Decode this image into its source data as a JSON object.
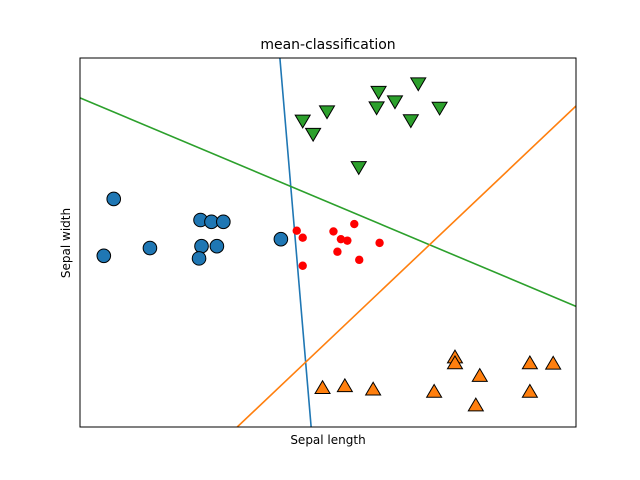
{
  "chart_data": {
    "type": "scatter",
    "title": "mean-classification",
    "xlabel": "Sepal length",
    "ylabel": "Sepal width",
    "xlim": [
      0,
      10
    ],
    "ylim": [
      0,
      10
    ],
    "ticks_visible": false,
    "grid": false,
    "legend": "none",
    "series": [
      {
        "marker": "circle",
        "color": "#1f77b4",
        "points": [
          [
            0.68,
            6.18
          ],
          [
            0.48,
            4.64
          ],
          [
            1.41,
            4.85
          ],
          [
            2.43,
            5.61
          ],
          [
            2.65,
            5.56
          ],
          [
            2.89,
            5.56
          ],
          [
            2.45,
            4.9
          ],
          [
            2.76,
            4.9
          ],
          [
            2.4,
            4.57
          ],
          [
            4.05,
            5.09
          ]
        ]
      },
      {
        "marker": "triangle-down",
        "color": "#2ca02c",
        "points": [
          [
            6.82,
            9.32
          ],
          [
            6.02,
            9.09
          ],
          [
            6.35,
            8.83
          ],
          [
            5.98,
            8.67
          ],
          [
            7.25,
            8.66
          ],
          [
            4.98,
            8.56
          ],
          [
            4.49,
            8.31
          ],
          [
            6.67,
            8.32
          ],
          [
            4.7,
            7.95
          ],
          [
            5.62,
            7.05
          ]
        ]
      },
      {
        "marker": "triangle-up",
        "color": "#ff7f0e",
        "points": [
          [
            9.07,
            1.72
          ],
          [
            7.56,
            1.88
          ],
          [
            7.56,
            1.72
          ],
          [
            4.89,
            1.05
          ],
          [
            5.34,
            1.1
          ],
          [
            5.91,
            1.01
          ],
          [
            7.14,
            0.95
          ],
          [
            8.06,
            1.38
          ],
          [
            9.54,
            1.71
          ],
          [
            9.07,
            0.95
          ],
          [
            7.98,
            0.58
          ]
        ]
      },
      {
        "marker": "dot",
        "color": "#ff0000",
        "points": [
          [
            4.37,
            5.32
          ],
          [
            4.49,
            5.13
          ],
          [
            5.11,
            5.3
          ],
          [
            5.53,
            5.5
          ],
          [
            5.26,
            5.09
          ],
          [
            5.39,
            5.05
          ],
          [
            6.04,
            4.99
          ],
          [
            5.19,
            4.75
          ],
          [
            5.63,
            4.53
          ],
          [
            4.49,
            4.37
          ]
        ]
      }
    ],
    "lines": [
      {
        "color": "#1f77b4",
        "x1": 4.03,
        "y1": 10,
        "x2": 4.66,
        "y2": 0
      },
      {
        "color": "#2ca02c",
        "x1": 0,
        "y1": 8.92,
        "x2": 10,
        "y2": 3.27
      },
      {
        "color": "#ff7f0e",
        "x1": 3.17,
        "y1": 0,
        "x2": 10,
        "y2": 8.7
      }
    ]
  }
}
